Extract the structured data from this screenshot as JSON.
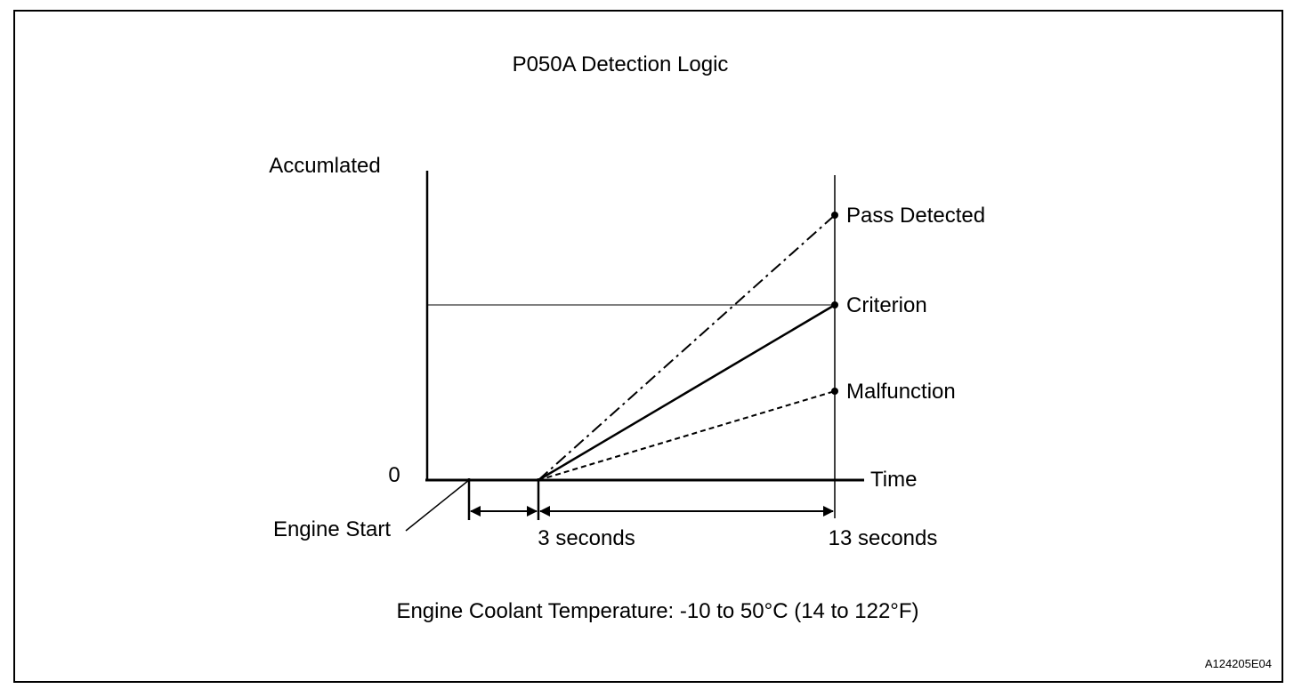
{
  "title": "P050A Detection Logic",
  "y_axis_label": "Accumlated",
  "y_zero_label": "0",
  "x_axis_label": "Time",
  "engine_start_label": "Engine Start",
  "time_marks": [
    "3 seconds",
    "13 seconds"
  ],
  "lines": [
    {
      "label": "Pass Detected",
      "style": "dash-dot"
    },
    {
      "label": "Criterion",
      "style": "solid"
    },
    {
      "label": "Malfunction",
      "style": "dashed"
    }
  ],
  "condition_note": "Engine Coolant Temperature: -10 to 50°C (14 to 122°F)",
  "figure_code": "A124205E04"
}
